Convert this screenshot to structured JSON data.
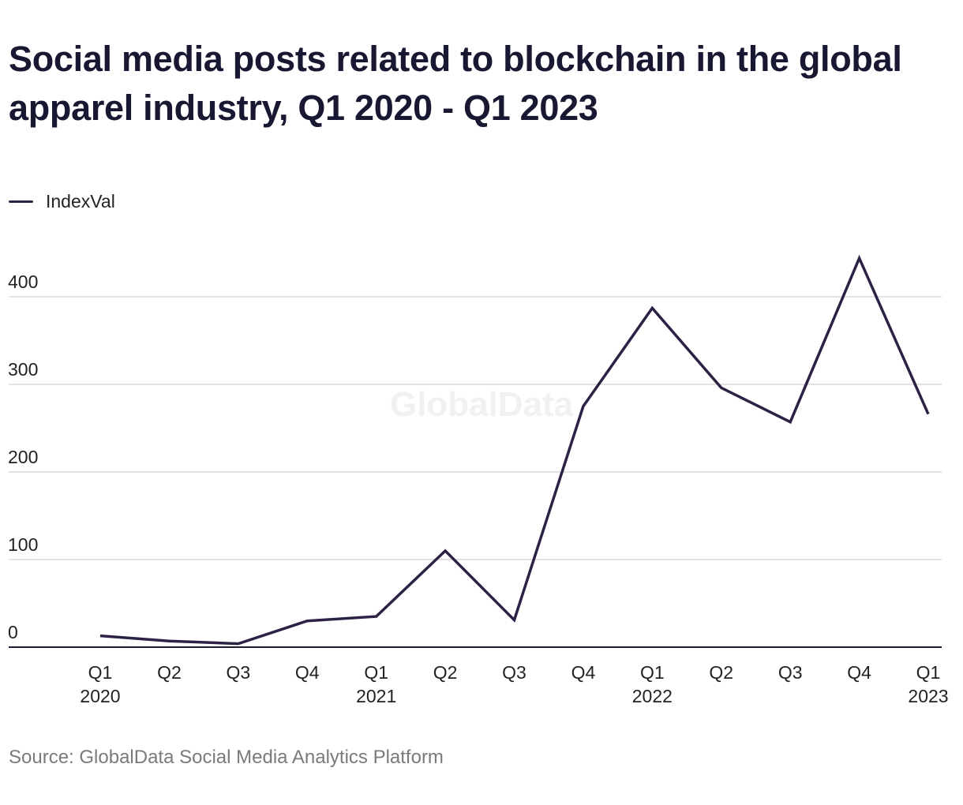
{
  "title": "Social media posts related to blockchain in the global apparel industry, Q1 2020 - Q1 2023",
  "legend": {
    "label": "IndexVal"
  },
  "watermark": "GlobalData",
  "source": "Source: GlobalData Social Media Analytics Platform",
  "colors": {
    "line": "#2d2145",
    "grid": "#d9d9d9",
    "axis": "#1b1a33"
  },
  "chart_data": {
    "type": "line",
    "title": "Social media posts related to blockchain in the global apparel industry, Q1 2020 - Q1 2023",
    "xlabel": "",
    "ylabel": "",
    "ylim": [
      0,
      450
    ],
    "yticks": [
      0,
      100,
      200,
      300,
      400
    ],
    "grid": true,
    "legend_position": "top-left",
    "categories": [
      {
        "q": "Q1",
        "year": "2020"
      },
      {
        "q": "Q2",
        "year": ""
      },
      {
        "q": "Q3",
        "year": ""
      },
      {
        "q": "Q4",
        "year": ""
      },
      {
        "q": "Q1",
        "year": "2021"
      },
      {
        "q": "Q2",
        "year": ""
      },
      {
        "q": "Q3",
        "year": ""
      },
      {
        "q": "Q4",
        "year": ""
      },
      {
        "q": "Q1",
        "year": "2022"
      },
      {
        "q": "Q2",
        "year": ""
      },
      {
        "q": "Q3",
        "year": ""
      },
      {
        "q": "Q4",
        "year": ""
      },
      {
        "q": "Q1",
        "year": "2023"
      }
    ],
    "series": [
      {
        "name": "IndexVal",
        "values": [
          13,
          7,
          4,
          30,
          35,
          110,
          31,
          275,
          387,
          296,
          257,
          444,
          266
        ]
      }
    ]
  }
}
